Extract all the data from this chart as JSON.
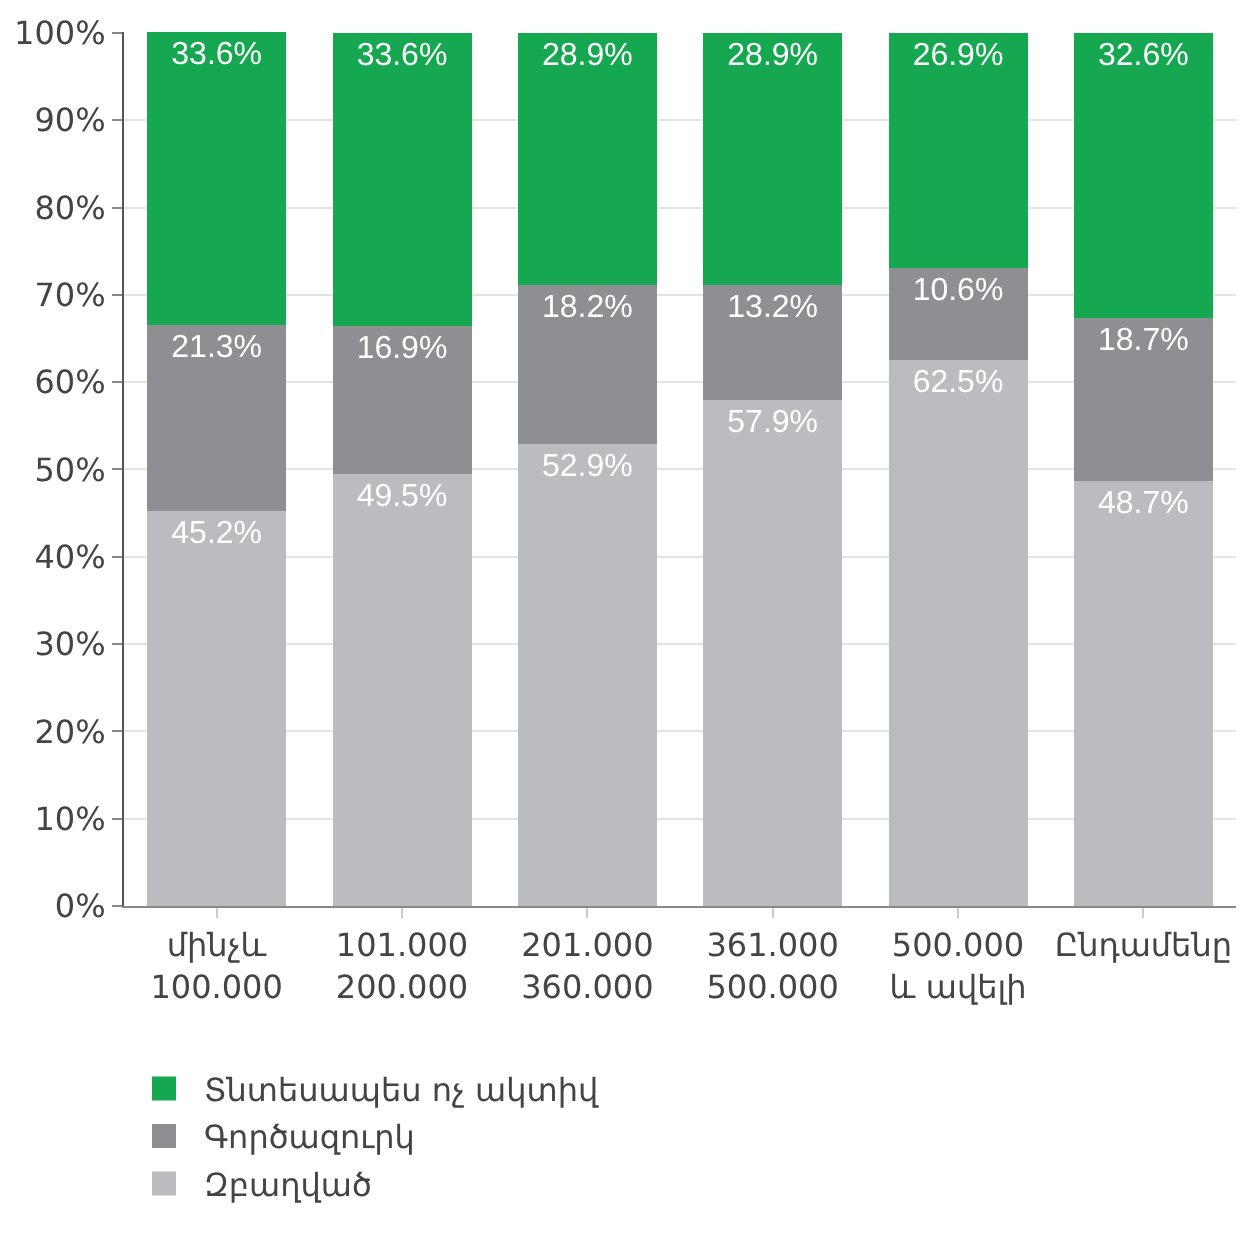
{
  "chart_data": {
    "type": "bar",
    "stacked": true,
    "grid": "y",
    "legend": "bottom",
    "categories": [
      "մինչև\n100.000",
      "101.000\n200.000",
      "201.000\n360.000",
      "361.000\n500.000",
      "500.000\nև ավելի",
      "Ընդամենը"
    ],
    "series": [
      {
        "name": "Զբաղված",
        "color": "#bbbcc0",
        "values": [
          45.2,
          49.5,
          52.9,
          57.9,
          62.5,
          48.7
        ],
        "value_labels": [
          "45.2%",
          "49.5%",
          "52.9%",
          "57.9%",
          "62.5%",
          "48.7%"
        ]
      },
      {
        "name": "Գործազուրկ",
        "color": "#8e8f93",
        "values": [
          21.3,
          16.9,
          18.2,
          13.2,
          10.6,
          18.7
        ],
        "value_labels": [
          "21.3%",
          "16.9%",
          "18.2%",
          "13.2%",
          "10.6%",
          "18.7%"
        ]
      },
      {
        "name": "Տնտեսապես ոչ ակտիվ",
        "color": "#16a850",
        "values": [
          33.6,
          33.6,
          28.9,
          28.9,
          26.9,
          32.6
        ],
        "value_labels": [
          "33.6%",
          "33.6%",
          "28.9%",
          "28.9%",
          "26.9%",
          "32.6%"
        ]
      }
    ],
    "ylim": [
      0,
      100.1
    ],
    "yticks": [
      {
        "value": 0,
        "label": "0%"
      },
      {
        "value": 10,
        "label": "10%"
      },
      {
        "value": 20,
        "label": "20%"
      },
      {
        "value": 30,
        "label": "30%"
      },
      {
        "value": 40,
        "label": "40%"
      },
      {
        "value": 50,
        "label": "50%"
      },
      {
        "value": 60,
        "label": "60%"
      },
      {
        "value": 70,
        "label": "70%"
      },
      {
        "value": 80,
        "label": "80%"
      },
      {
        "value": 90,
        "label": "90%"
      },
      {
        "value": 100,
        "label": "100%"
      }
    ]
  }
}
